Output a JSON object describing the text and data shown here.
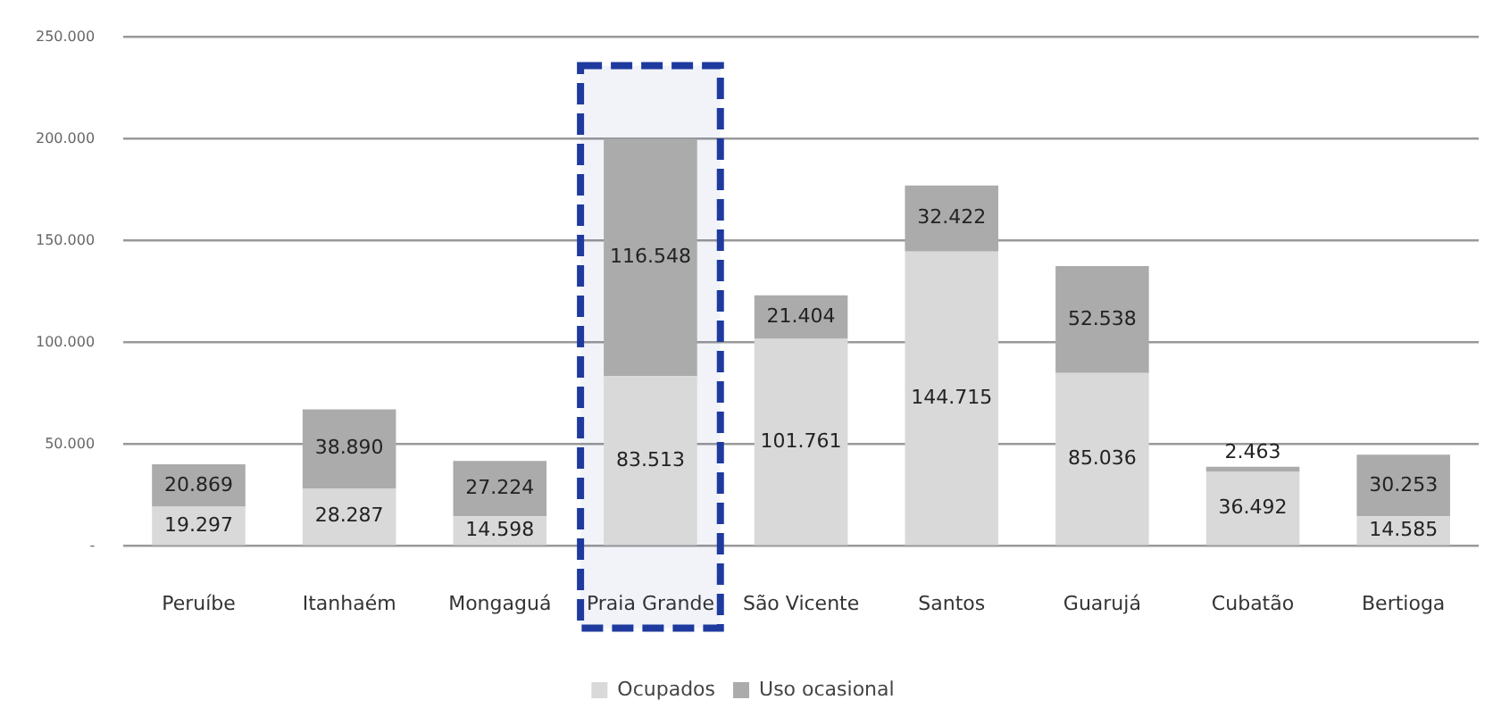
{
  "chart_data": {
    "type": "bar",
    "stacked": true,
    "categories": [
      "Peruíbe",
      "Itanhaém",
      "Mongaguá",
      "Praia Grande",
      "São Vicente",
      "Santos",
      "Guarujá",
      "Cubatão",
      "Bertioga"
    ],
    "series": [
      {
        "name": "Ocupados",
        "color": "#d9d9d9",
        "values": [
          19297,
          28287,
          14598,
          83513,
          101761,
          144715,
          85036,
          36492,
          14585
        ],
        "value_labels": [
          "19.297",
          "28.287",
          "14.598",
          "83.513",
          "101.761",
          "144.715",
          "85.036",
          "36.492",
          "14.585"
        ]
      },
      {
        "name": "Uso ocasional",
        "color": "#ababab",
        "values": [
          20869,
          38890,
          27224,
          116548,
          21404,
          32422,
          52538,
          2463,
          30253
        ],
        "value_labels": [
          "20.869",
          "38.890",
          "27.224",
          "116.548",
          "21.404",
          "32.422",
          "52.538",
          "2.463",
          "30.253"
        ]
      }
    ],
    "ylim": [
      0,
      250000
    ],
    "yticks": [
      {
        "value": 0,
        "label": "-"
      },
      {
        "value": 50000,
        "label": "50.000"
      },
      {
        "value": 100000,
        "label": "100.000"
      },
      {
        "value": 150000,
        "label": "150.000"
      },
      {
        "value": 200000,
        "label": "200.000"
      },
      {
        "value": 250000,
        "label": "250.000"
      }
    ],
    "grid": "y",
    "legend": "bottom",
    "bands": [
      {
        "axis": "x",
        "from": "Praia Grande",
        "to": "Praia Grande",
        "color": "#1f3a9e"
      }
    ]
  }
}
